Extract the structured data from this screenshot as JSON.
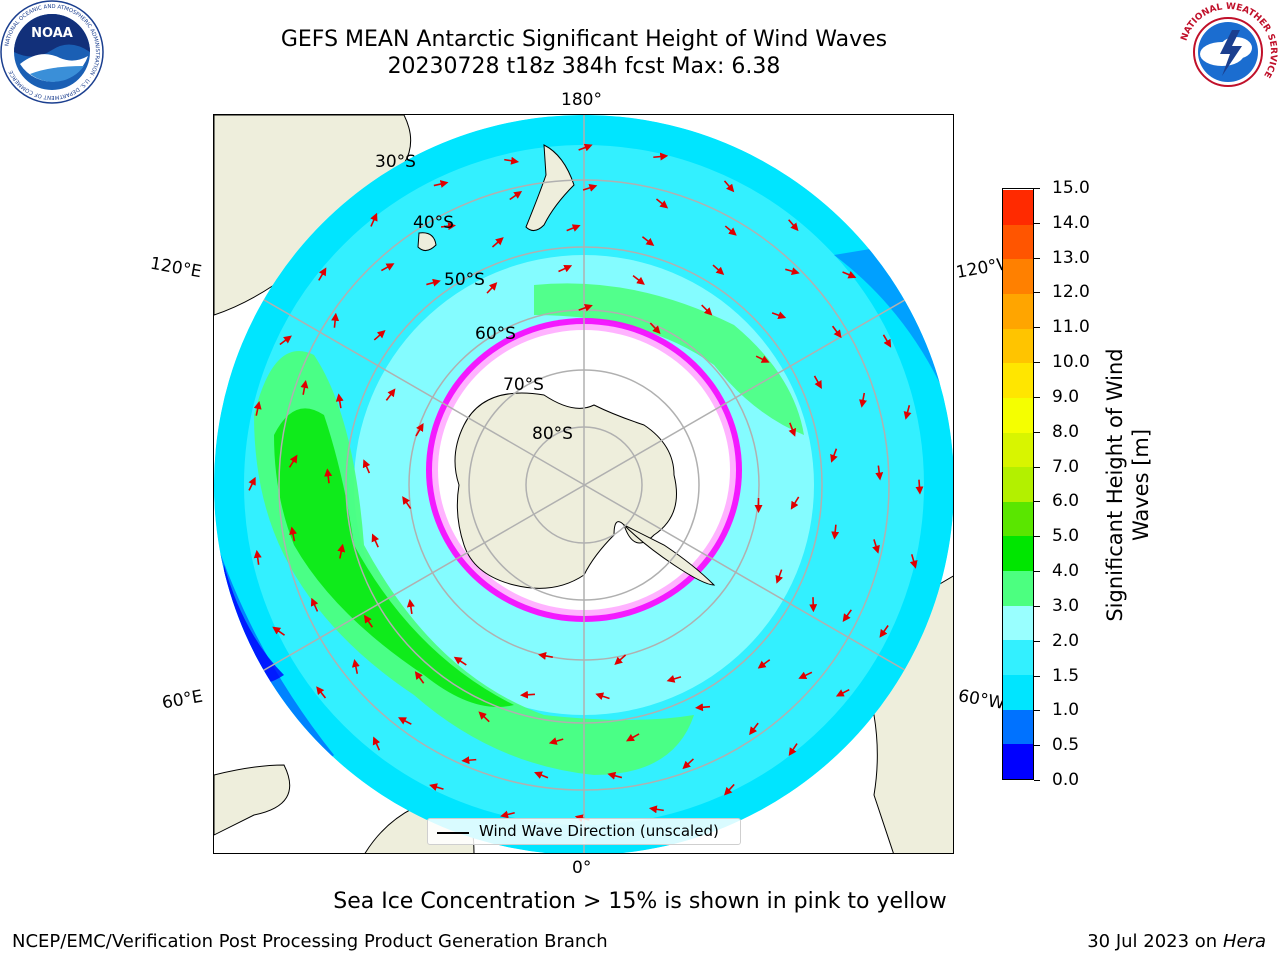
{
  "header": {
    "title_line1": "GEFS MEAN Antarctic Significant Height of Wind Waves",
    "title_line2": "20230728 t18z 384h fcst   Max: 6.38"
  },
  "logos": {
    "left": "NOAA",
    "left_ring_text": "NATIONAL OCEANIC AND ATMOSPHERIC ADMINISTRATION · U.S. DEPARTMENT OF COMMERCE",
    "right_ring_text": "NATIONAL WEATHER SERVICE"
  },
  "map": {
    "projection": "south-polar-stereographic",
    "longitude_labels": {
      "top": "180°",
      "bottom": "0°",
      "upper_left": "120°E",
      "lower_left": "60°E",
      "upper_right": "120°W",
      "lower_right": "60°W"
    },
    "latitude_labels": [
      "30°S",
      "40°S",
      "50°S",
      "60°S",
      "70°S",
      "80°S"
    ],
    "legend_label": "Wind Wave Direction (unscaled)"
  },
  "colorbar": {
    "label_line1": "Significant Height of Wind",
    "label_line2": "Waves [m]",
    "ticks": [
      "15.0",
      "14.0",
      "13.0",
      "12.0",
      "11.0",
      "10.0",
      "9.0",
      "8.0",
      "7.0",
      "6.0",
      "5.0",
      "4.0",
      "3.0",
      "2.0",
      "1.5",
      "1.0",
      "0.5",
      "0.0"
    ],
    "colors": [
      "#0000ff",
      "#0072ff",
      "#00e5ff",
      "#33f0ff",
      "#99ffff",
      "#4cff80",
      "#00e600",
      "#5ae600",
      "#b3f000",
      "#d8f500",
      "#f5ff00",
      "#ffe600",
      "#ffc400",
      "#ffa500",
      "#ff8000",
      "#ff5500",
      "#ff2a00"
    ]
  },
  "note": "Sea Ice Concentration > 15% is shown in pink to yellow",
  "footer": {
    "left": "NCEP/EMC/Verification Post Processing Product Generation Branch",
    "right_date": "30 Jul 2023 on ",
    "right_host": "Hera"
  }
}
